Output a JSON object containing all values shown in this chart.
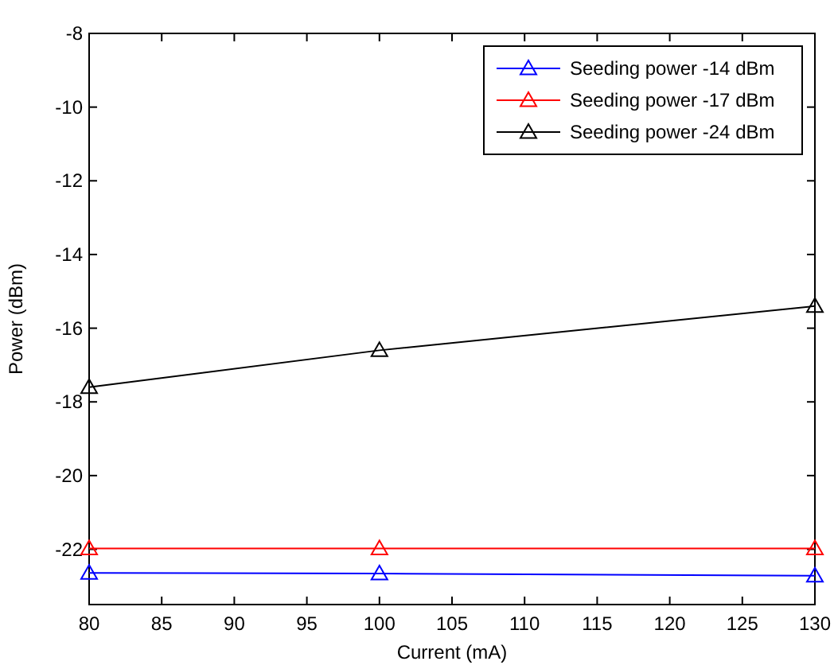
{
  "chart_data": {
    "type": "line",
    "xlabel": "Current (mA)",
    "ylabel": "Power (dBm)",
    "x": [
      80,
      100,
      130
    ],
    "series": [
      {
        "name": "Seeding power -14 dBm",
        "color": "#0000ff",
        "values": [
          -22.64,
          -22.66,
          -22.72
        ]
      },
      {
        "name": "Seeding power -17 dBm",
        "color": "#ff0000",
        "values": [
          -21.98,
          -21.98,
          -21.98
        ]
      },
      {
        "name": "Seeding power -24 dBm",
        "color": "#000000",
        "values": [
          -17.6,
          -16.6,
          -15.4
        ]
      }
    ],
    "xlim": [
      80,
      130
    ],
    "xticks": [
      80,
      85,
      90,
      95,
      100,
      105,
      110,
      115,
      120,
      125,
      130
    ],
    "ylim": [
      -23.5,
      -8
    ],
    "yticks": [
      -22,
      -20,
      -18,
      -16,
      -14,
      -12,
      -10,
      -8
    ],
    "grid": false,
    "legend": "top right",
    "marker": "triangle",
    "line_style": "solid"
  }
}
